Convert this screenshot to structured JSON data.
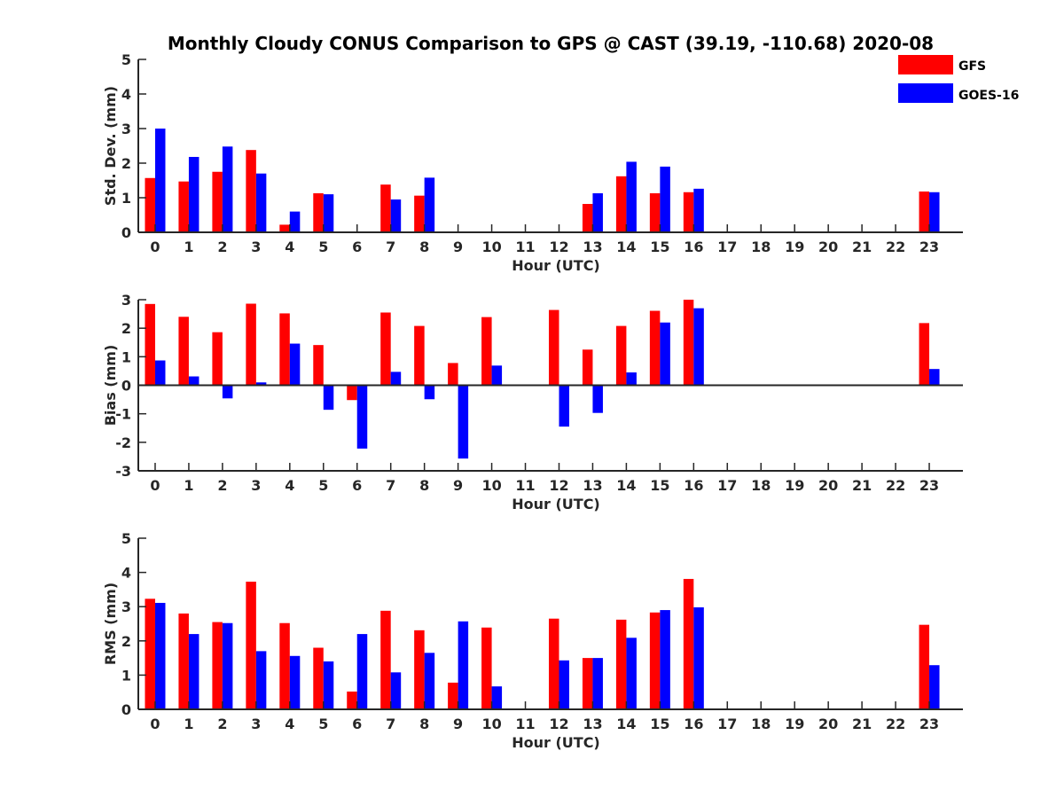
{
  "title": "Monthly Cloudy CONUS Comparison to GPS @ CAST (39.19, -110.68) 2020-08",
  "legend": [
    {
      "name": "GFS",
      "color": "#ff0000"
    },
    {
      "name": "GOES-16",
      "color": "#0000ff"
    }
  ],
  "chart_data": [
    {
      "type": "bar",
      "xlabel": "Hour (UTC)",
      "ylabel": "Std. Dev. (mm)",
      "ylim": [
        0,
        5
      ],
      "yticks": [
        0,
        1,
        2,
        3,
        4,
        5
      ],
      "categories": [
        "0",
        "1",
        "2",
        "3",
        "4",
        "5",
        "6",
        "7",
        "8",
        "9",
        "10",
        "11",
        "12",
        "13",
        "14",
        "15",
        "16",
        "17",
        "18",
        "19",
        "20",
        "21",
        "22",
        "23"
      ],
      "series": [
        {
          "name": "GFS",
          "color": "#ff0000",
          "values": [
            1.57,
            1.47,
            1.75,
            2.38,
            0.22,
            1.13,
            null,
            1.38,
            1.06,
            null,
            null,
            null,
            null,
            0.82,
            1.62,
            1.13,
            1.16,
            null,
            null,
            null,
            null,
            null,
            null,
            1.18
          ]
        },
        {
          "name": "GOES-16",
          "color": "#0000ff",
          "values": [
            3.0,
            2.18,
            2.48,
            1.7,
            0.6,
            1.1,
            null,
            0.95,
            1.58,
            null,
            null,
            null,
            null,
            1.13,
            2.04,
            1.9,
            1.26,
            null,
            null,
            null,
            null,
            null,
            null,
            1.16
          ]
        }
      ]
    },
    {
      "type": "bar",
      "xlabel": "Hour (UTC)",
      "ylabel": "Bias (mm)",
      "ylim": [
        -3,
        3
      ],
      "yticks": [
        -3,
        -2,
        -1,
        0,
        1,
        2,
        3
      ],
      "categories": [
        "0",
        "1",
        "2",
        "3",
        "4",
        "5",
        "6",
        "7",
        "8",
        "9",
        "10",
        "11",
        "12",
        "13",
        "14",
        "15",
        "16",
        "17",
        "18",
        "19",
        "20",
        "21",
        "22",
        "23"
      ],
      "series": [
        {
          "name": "GFS",
          "color": "#ff0000",
          "values": [
            2.85,
            2.4,
            1.86,
            2.86,
            2.52,
            1.41,
            -0.52,
            2.55,
            2.08,
            0.78,
            2.39,
            null,
            2.64,
            1.25,
            2.08,
            2.61,
            3.0,
            null,
            null,
            null,
            null,
            null,
            null,
            2.18
          ]
        },
        {
          "name": "GOES-16",
          "color": "#0000ff",
          "values": [
            0.87,
            0.31,
            -0.46,
            0.1,
            1.46,
            -0.86,
            -2.22,
            0.47,
            -0.49,
            -2.57,
            0.69,
            null,
            -1.45,
            -0.97,
            0.45,
            2.2,
            2.7,
            null,
            null,
            null,
            null,
            null,
            null,
            0.57
          ]
        }
      ]
    },
    {
      "type": "bar",
      "xlabel": "Hour (UTC)",
      "ylabel": "RMS (mm)",
      "ylim": [
        0,
        5
      ],
      "yticks": [
        0,
        1,
        2,
        3,
        4,
        5
      ],
      "categories": [
        "0",
        "1",
        "2",
        "3",
        "4",
        "5",
        "6",
        "7",
        "8",
        "9",
        "10",
        "11",
        "12",
        "13",
        "14",
        "15",
        "16",
        "17",
        "18",
        "19",
        "20",
        "21",
        "22",
        "23"
      ],
      "series": [
        {
          "name": "GFS",
          "color": "#ff0000",
          "values": [
            3.23,
            2.8,
            2.55,
            3.73,
            2.52,
            1.8,
            0.52,
            2.88,
            2.31,
            0.78,
            2.39,
            null,
            2.65,
            1.5,
            2.62,
            2.83,
            3.81,
            null,
            null,
            null,
            null,
            null,
            null,
            2.47
          ]
        },
        {
          "name": "GOES-16",
          "color": "#0000ff",
          "values": [
            3.11,
            2.2,
            2.52,
            1.7,
            1.56,
            1.4,
            2.2,
            1.08,
            1.65,
            2.57,
            0.67,
            null,
            1.43,
            1.5,
            2.09,
            2.9,
            2.98,
            null,
            null,
            null,
            null,
            null,
            null,
            1.29
          ]
        }
      ]
    }
  ]
}
